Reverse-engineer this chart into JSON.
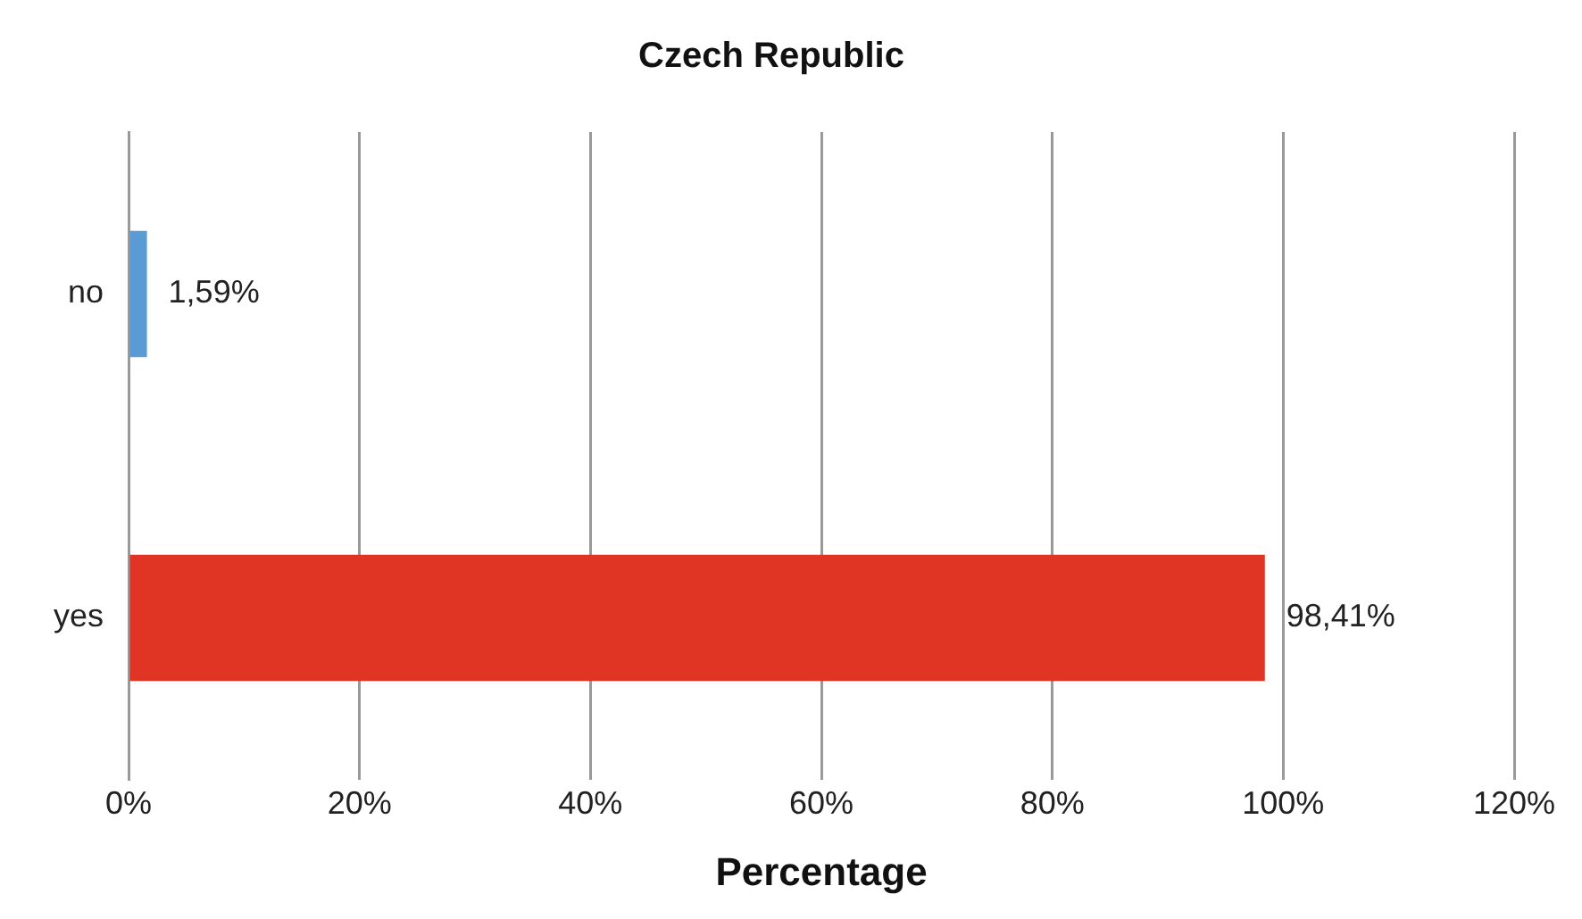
{
  "chart_data": {
    "type": "bar",
    "orientation": "horizontal",
    "title": "Czech Republic",
    "xlabel": "Percentage",
    "categories": [
      "no",
      "yes"
    ],
    "values": [
      1.59,
      98.41
    ],
    "colors": [
      "#5b9bd5",
      "#e03424"
    ],
    "value_labels": [
      "1,59%",
      "98,41%"
    ],
    "xlim": [
      0,
      120
    ],
    "xticks": [
      {
        "value": 0,
        "label": "0%"
      },
      {
        "value": 20,
        "label": "20%"
      },
      {
        "value": 40,
        "label": "40%"
      },
      {
        "value": 60,
        "label": "60%"
      },
      {
        "value": 80,
        "label": "80%"
      },
      {
        "value": 100,
        "label": "100%"
      },
      {
        "value": 120,
        "label": "120%"
      }
    ],
    "grid": "x",
    "legend": false
  }
}
